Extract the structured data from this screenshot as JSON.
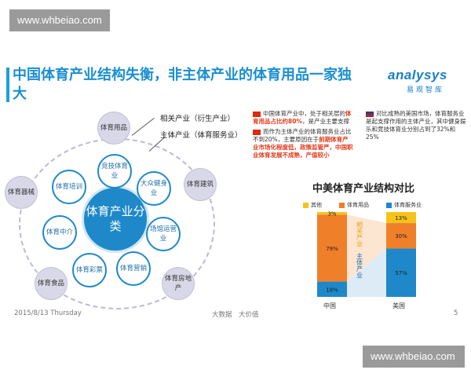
{
  "watermark": "www.whbeiao.com",
  "title": "中国体育产业结构失衡，非主体产业的体育用品一家独大",
  "logo": {
    "brand": "analysys",
    "sub": "易观智库"
  },
  "diagram": {
    "center": "体育产业分类",
    "inner": [
      "竞技体育业",
      "大众健身业",
      "场馆运营业",
      "体育营销",
      "体育彩票",
      "体育中介",
      "体育培训"
    ],
    "outer": [
      "体育用品",
      "体育建筑",
      "体育房地产",
      "体育食品",
      "体育器械"
    ],
    "related_label": "相关产业（衍生产业）",
    "main_label": "主体产业（体育服务业）"
  },
  "notes": {
    "cn": [
      {
        "a": "中国体育产业中，处于相关层的",
        "b": "体育用品占比约80%",
        "c": "，是产业主要支撑"
      },
      {
        "a": "而作为主体产业的体育服务业占比不到20%，主要原因在于",
        "b": "前期体育产业市场化程度低，政策监管严，中国职业体育发展不成熟，产值较小",
        "c": ""
      }
    ],
    "us": "对比成熟的美国市场，体育服务业是起支撑作用的主体产业，其中健身娱乐和竞技体育业分别占到了32%和25%"
  },
  "chart_data": {
    "type": "bar",
    "title": "中美体育产业结构对比",
    "categories": [
      "中国",
      "美国"
    ],
    "series": [
      {
        "name": "体育服务业",
        "values": [
          18,
          57
        ],
        "color": "#1e88c9"
      },
      {
        "name": "体育用品",
        "values": [
          79,
          30
        ],
        "color": "#f07f2a"
      },
      {
        "name": "其他",
        "values": [
          3,
          13
        ],
        "color": "#f7c21a"
      }
    ],
    "value_labels": {
      "中国": [
        "18%",
        "79%",
        "3%"
      ],
      "美国": [
        "57%",
        "30%",
        "13%"
      ]
    },
    "annotations": [
      "相关产业",
      "主体产业"
    ],
    "ylim": [
      0,
      100
    ]
  },
  "footer": {
    "date": "2015/8/13 Thursday",
    "center": "大数据　大价值",
    "page": "5"
  }
}
